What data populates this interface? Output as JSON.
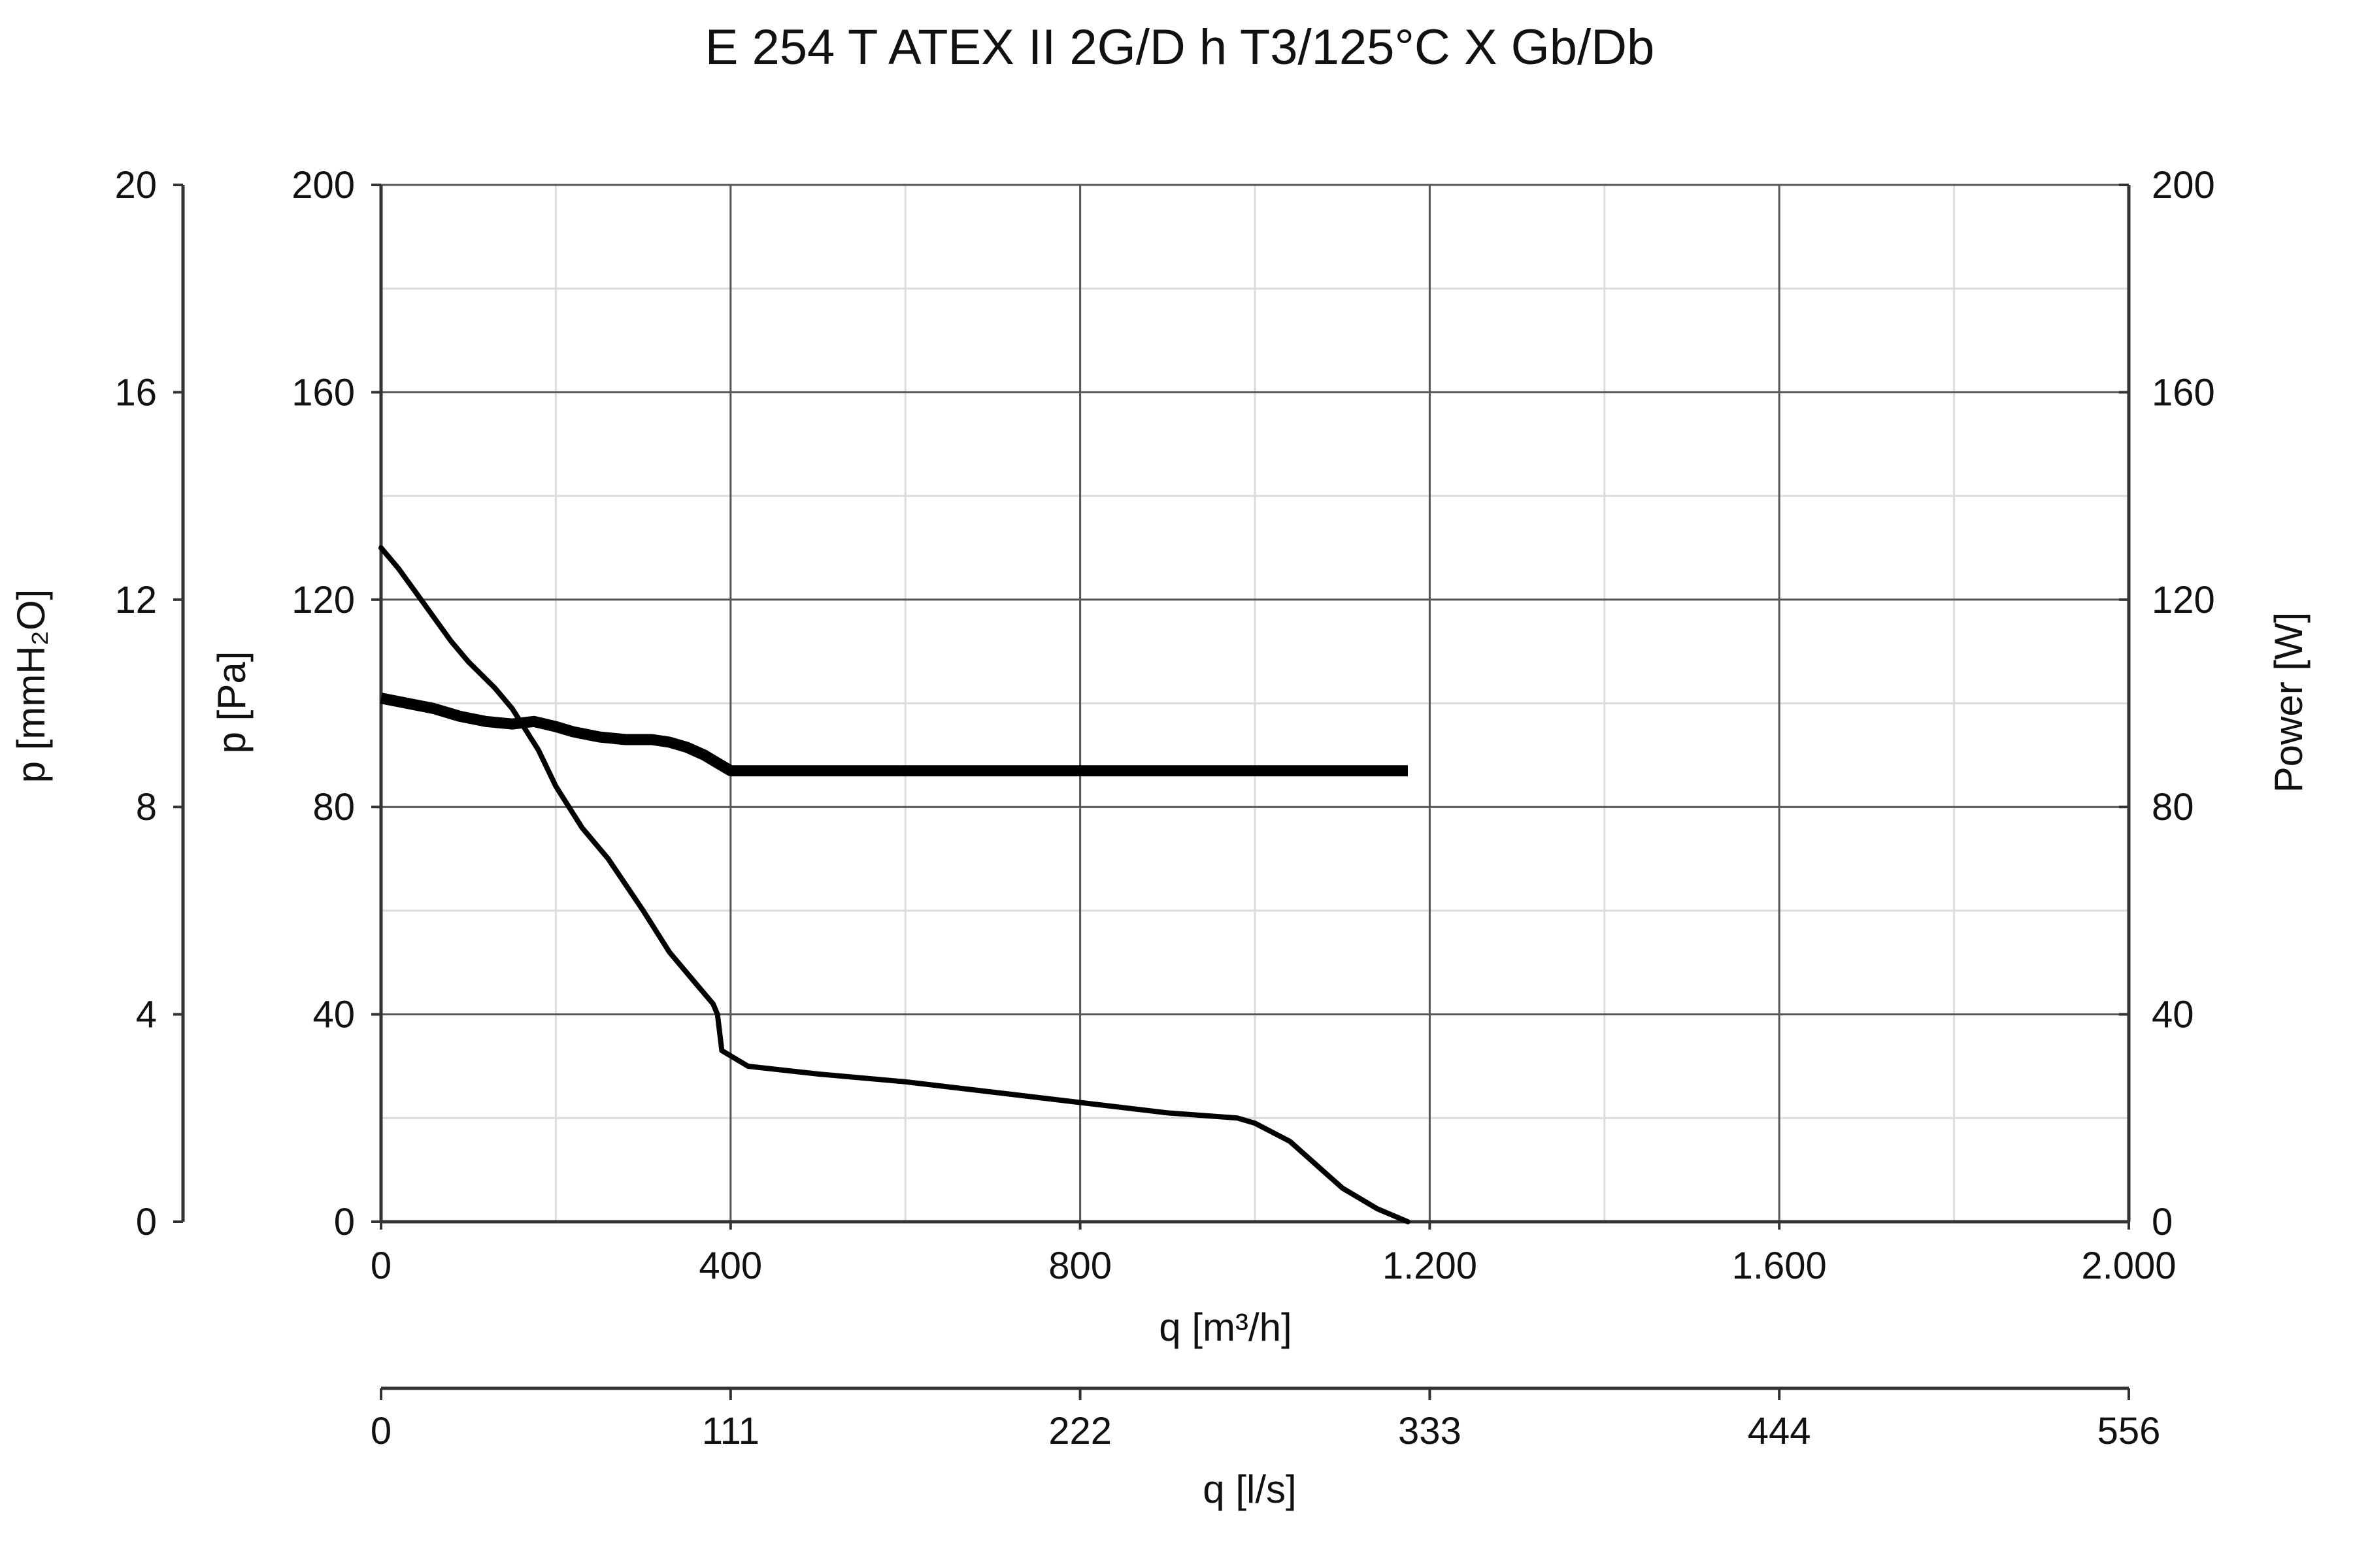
{
  "chart_data": {
    "type": "line",
    "title": "E 254 T ATEX II 2G/D h T3/125°C X Gb/Db",
    "x_axis": {
      "label": "q [m³/h]",
      "lim": [
        0,
        2000
      ],
      "ticks": [
        0,
        400,
        800,
        1200,
        1600,
        2000
      ],
      "tick_labels": [
        "0",
        "400",
        "800",
        "1.200",
        "1.600",
        "2.000"
      ],
      "minor_step": 200
    },
    "x2_axis": {
      "label": "q [l/s]",
      "tick_labels": [
        "0",
        "111",
        "222",
        "333",
        "444",
        "556"
      ]
    },
    "y_left_outer": {
      "label": "p [mmH₂O]",
      "lim": [
        0,
        20
      ],
      "tick_labels": [
        "0",
        "4",
        "8",
        "12",
        "16",
        "20"
      ]
    },
    "y_left": {
      "label": "p [Pa]",
      "lim": [
        0,
        200
      ],
      "ticks": [
        0,
        40,
        80,
        120,
        160,
        200
      ],
      "tick_labels": [
        "0",
        "40",
        "80",
        "120",
        "160",
        "200"
      ],
      "minor_step": 20
    },
    "y_right": {
      "label": "Power [W]",
      "lim": [
        0,
        200
      ],
      "tick_labels": [
        "0",
        "40",
        "80",
        "120",
        "160",
        "200"
      ]
    },
    "grid": true,
    "line_color": "#000000",
    "series": [
      {
        "axis": "y_left",
        "line": "thin",
        "x": [
          0,
          20,
          50,
          80,
          100,
          130,
          150,
          180,
          200,
          230,
          260,
          300,
          330,
          360,
          380,
          385,
          390,
          420,
          500,
          600,
          700,
          800,
          900,
          980,
          1000,
          1040,
          1070,
          1100,
          1140,
          1175
        ],
        "y": [
          130,
          126,
          119,
          112,
          108,
          103,
          99,
          91,
          84,
          76,
          70,
          60,
          52,
          46,
          42,
          40,
          33,
          30,
          28.5,
          27,
          25,
          23,
          21,
          20,
          19,
          15.5,
          11,
          6.5,
          2.5,
          0
        ]
      },
      {
        "axis": "y_right",
        "line": "thick",
        "x": [
          0,
          30,
          60,
          90,
          120,
          150,
          175,
          200,
          220,
          250,
          280,
          310,
          330,
          350,
          370,
          385,
          400,
          600,
          800,
          1000,
          1175
        ],
        "y": [
          101,
          100,
          99,
          97.5,
          96.5,
          96,
          96.5,
          95.5,
          94.5,
          93.5,
          93,
          93,
          92.5,
          91.5,
          90,
          88.5,
          87,
          87,
          87,
          87,
          87
        ]
      }
    ]
  }
}
